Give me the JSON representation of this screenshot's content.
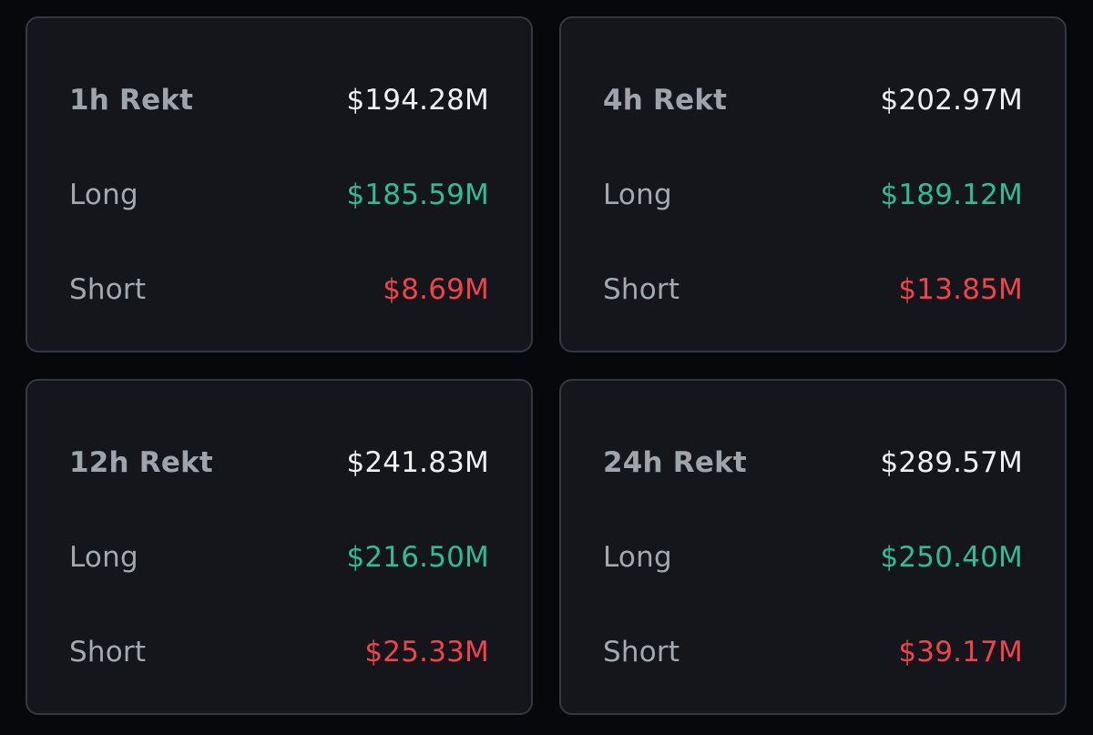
{
  "colors": {
    "background": "#07080b",
    "card": "#14161c",
    "border": "#343842",
    "label": "#a4a8b1",
    "total": "#eef0f3",
    "long": "#2ebd95",
    "short": "#f0434b"
  },
  "cards": [
    {
      "title": "1h Rekt",
      "total": "$194.28M",
      "long_label": "Long",
      "long": "$185.59M",
      "short_label": "Short",
      "short": "$8.69M"
    },
    {
      "title": "4h Rekt",
      "total": "$202.97M",
      "long_label": "Long",
      "long": "$189.12M",
      "short_label": "Short",
      "short": "$13.85M"
    },
    {
      "title": "12h Rekt",
      "total": "$241.83M",
      "long_label": "Long",
      "long": "$216.50M",
      "short_label": "Short",
      "short": "$25.33M"
    },
    {
      "title": "24h Rekt",
      "total": "$289.57M",
      "long_label": "Long",
      "long": "$250.40M",
      "short_label": "Short",
      "short": "$39.17M"
    }
  ]
}
